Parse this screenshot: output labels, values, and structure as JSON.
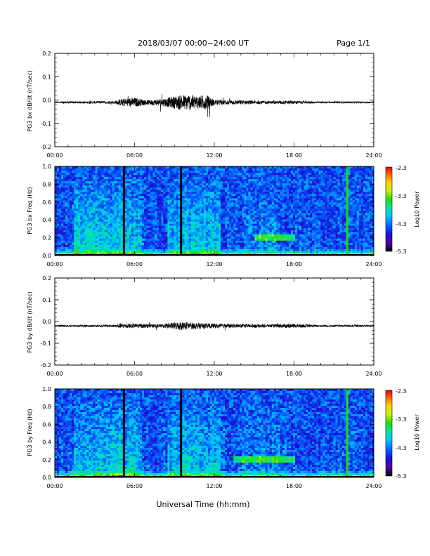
{
  "header": {
    "title": "2018/03/07  00:00−24:00 UT",
    "page": "Page 1/1"
  },
  "footer": {
    "xlabel": "Universal Time (hh:mm)"
  },
  "colors": {
    "trace": "#000000",
    "colormap": [
      "#000000",
      "#5a00a0",
      "#1a10d8",
      "#0060ff",
      "#00c8ff",
      "#00e8a0",
      "#20e000",
      "#c8f000",
      "#ffd000",
      "#ff6000",
      "#e00000"
    ]
  },
  "chart_data": [
    {
      "type": "line",
      "panel": "bx-waveform",
      "ylabel": "PG3 bx dB/dt (nT/sec)",
      "x_unit": "hours UT",
      "xlim": [
        0,
        24
      ],
      "ylim": [
        -0.2,
        0.2
      ],
      "xticks": [
        "00:00",
        "06:00",
        "12:00",
        "18:00",
        "24:00"
      ],
      "yticks": [
        "0.2",
        "0.1",
        "0.0",
        "-0.1",
        "-0.2"
      ],
      "baseline": -0.01,
      "noise_envelope": [
        {
          "x": 0,
          "amp": 0.004
        },
        {
          "x": 4.5,
          "amp": 0.006
        },
        {
          "x": 5.0,
          "amp": 0.015
        },
        {
          "x": 5.5,
          "amp": 0.02
        },
        {
          "x": 6.0,
          "amp": 0.02
        },
        {
          "x": 7.0,
          "amp": 0.01
        },
        {
          "x": 8.5,
          "amp": 0.02
        },
        {
          "x": 9.2,
          "amp": 0.03
        },
        {
          "x": 10.0,
          "amp": 0.035
        },
        {
          "x": 10.8,
          "amp": 0.03
        },
        {
          "x": 11.5,
          "amp": 0.03
        },
        {
          "x": 12.0,
          "amp": 0.012
        },
        {
          "x": 16.5,
          "amp": 0.006
        },
        {
          "x": 17.5,
          "amp": 0.008
        },
        {
          "x": 20.0,
          "amp": 0.004
        },
        {
          "x": 24.0,
          "amp": 0.004
        }
      ]
    },
    {
      "type": "heatmap",
      "panel": "bx-spectrogram",
      "ylabel": "PG3 bx Freq (Hz)",
      "x_unit": "hours UT",
      "xlim": [
        0,
        24
      ],
      "ylim": [
        0,
        1.0
      ],
      "xticks": [
        "00:00",
        "06:00",
        "12:00",
        "18:00",
        "24:00"
      ],
      "yticks": [
        "1.0",
        "0.8",
        "0.6",
        "0.4",
        "0.2",
        "0.0"
      ],
      "colorbar": {
        "label": "Log10 Power",
        "ticks": [
          "-2.3",
          "-3.3",
          "-4.3",
          "-5.3"
        ],
        "range": [
          -5.3,
          -2.3
        ]
      },
      "gaps_hours": [
        5.2,
        9.5
      ],
      "vertical_band_hours": 22.0,
      "enhanced_band": {
        "start": 15.0,
        "end": 18.0,
        "freq": 0.2
      }
    },
    {
      "type": "line",
      "panel": "by-waveform",
      "ylabel": "PG3 by dB/dt (nT/sec)",
      "x_unit": "hours UT",
      "xlim": [
        0,
        24
      ],
      "ylim": [
        -0.2,
        0.2
      ],
      "xticks": [
        "00:00",
        "06:00",
        "12:00",
        "18:00",
        "24:00"
      ],
      "yticks": [
        "0.2",
        "0.1",
        "0.0",
        "-0.1",
        "-0.2"
      ],
      "baseline": -0.02,
      "noise_envelope": [
        {
          "x": 0,
          "amp": 0.004
        },
        {
          "x": 4.5,
          "amp": 0.006
        },
        {
          "x": 5.0,
          "amp": 0.012
        },
        {
          "x": 6.0,
          "amp": 0.01
        },
        {
          "x": 8.0,
          "amp": 0.008
        },
        {
          "x": 9.5,
          "amp": 0.02
        },
        {
          "x": 10.5,
          "amp": 0.015
        },
        {
          "x": 12.0,
          "amp": 0.01
        },
        {
          "x": 16.5,
          "amp": 0.007
        },
        {
          "x": 17.5,
          "amp": 0.01
        },
        {
          "x": 20.0,
          "amp": 0.005
        },
        {
          "x": 24.0,
          "amp": 0.005
        }
      ]
    },
    {
      "type": "heatmap",
      "panel": "by-spectrogram",
      "ylabel": "PG3 by Freq (Hz)",
      "x_unit": "hours UT",
      "xlim": [
        0,
        24
      ],
      "ylim": [
        0,
        1.0
      ],
      "xticks": [
        "00:00",
        "06:00",
        "12:00",
        "18:00",
        "24:00"
      ],
      "yticks": [
        "1.0",
        "0.8",
        "0.6",
        "0.4",
        "0.2",
        "0.0"
      ],
      "colorbar": {
        "label": "Log10 Power",
        "ticks": [
          "-2.3",
          "-3.3",
          "-4.3",
          "-5.3"
        ],
        "range": [
          -5.3,
          -2.3
        ]
      },
      "gaps_hours": [
        5.2,
        9.5
      ],
      "vertical_band_hours": 22.0,
      "enhanced_band": {
        "start": 13.5,
        "end": 18.0,
        "freq": 0.2
      }
    }
  ]
}
